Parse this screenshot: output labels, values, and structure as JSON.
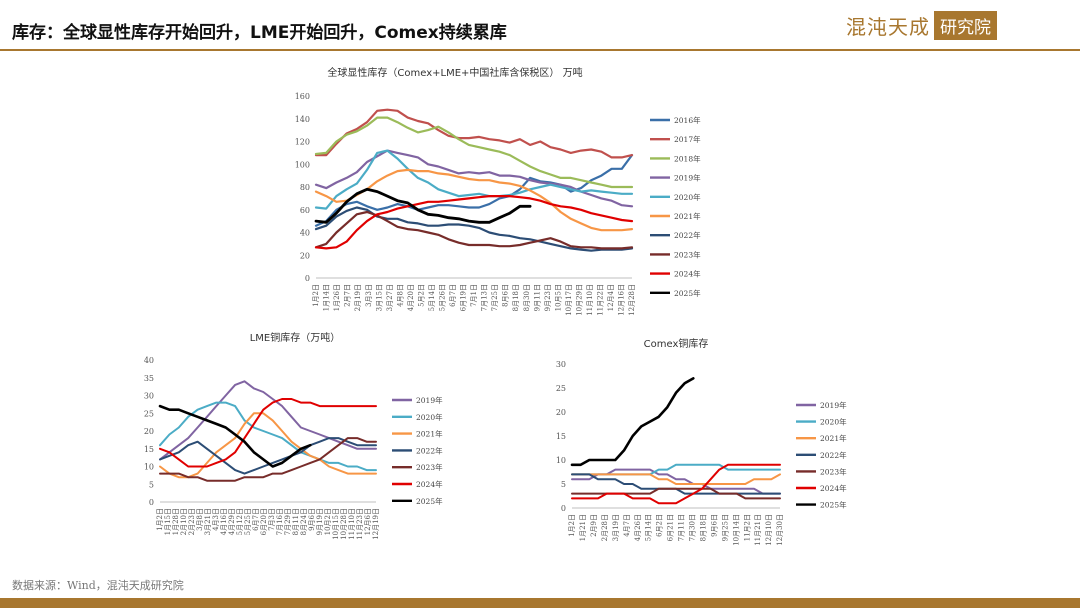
{
  "header": {
    "title": "库存：全球显性库存开始回升，LME开始回升，Comex持续累库",
    "logo_text": "混沌天成",
    "logo_box": "研究院",
    "brand_color": "#a8772f"
  },
  "footer": {
    "source": "数据来源：Wind，混沌天成研究院"
  },
  "series_colors": {
    "2016年": "#3a6fa8",
    "2017年": "#c0504d",
    "2018年": "#9bbb59",
    "2019年": "#8064a2",
    "2020年": "#4bacc6",
    "2021年": "#f79646",
    "2022年": "#2c4d75",
    "2023年": "#772c2a",
    "2024年": "#e00000",
    "2025年": "#000000"
  },
  "chart_data": [
    {
      "id": "global",
      "type": "line",
      "title": "全球显性库存（Comex+LME+中国社库含保税区） 万吨",
      "ylim": [
        0,
        160
      ],
      "yticks": [
        0,
        20,
        40,
        60,
        80,
        100,
        120,
        140,
        160
      ],
      "grid": false,
      "legend_position": "right",
      "x_labels": [
        "1月2日",
        "1月14日",
        "1月26日",
        "2月7日",
        "2月19日",
        "3月3日",
        "3月15日",
        "3月27日",
        "4月8日",
        "4月20日",
        "5月2日",
        "5月14日",
        "5月26日",
        "6月7日",
        "6月19日",
        "7月1日",
        "7月13日",
        "7月25日",
        "8月6日",
        "8月18日",
        "8月30日",
        "9月11日",
        "9月23日",
        "10月5日",
        "10月17日",
        "10月29日",
        "11月10日",
        "11月22日",
        "12月4日",
        "12月16日",
        "12月28日"
      ],
      "series": [
        {
          "name": "2016年",
          "values": [
            46,
            50,
            60,
            65,
            67,
            63,
            60,
            62,
            65,
            63,
            60,
            62,
            64,
            64,
            63,
            62,
            62,
            65,
            70,
            72,
            78,
            88,
            85,
            84,
            82,
            76,
            79,
            86,
            90,
            96,
            96,
            108
          ]
        },
        {
          "name": "2017年",
          "values": [
            108,
            108,
            118,
            127,
            131,
            137,
            147,
            148,
            147,
            141,
            138,
            136,
            130,
            125,
            123,
            123,
            124,
            122,
            121,
            119,
            122,
            117,
            120,
            115,
            113,
            110,
            112,
            113,
            111,
            106,
            106,
            108
          ]
        },
        {
          "name": "2018年",
          "values": [
            109,
            110,
            120,
            126,
            129,
            134,
            141,
            141,
            137,
            132,
            128,
            130,
            133,
            128,
            122,
            117,
            115,
            113,
            111,
            108,
            103,
            98,
            94,
            91,
            88,
            88,
            86,
            84,
            82,
            80,
            80,
            80
          ]
        },
        {
          "name": "2019年",
          "values": [
            82,
            79,
            84,
            88,
            93,
            102,
            107,
            112,
            110,
            108,
            106,
            100,
            98,
            95,
            92,
            93,
            92,
            93,
            90,
            90,
            89,
            86,
            84,
            83,
            82,
            80,
            76,
            73,
            70,
            68,
            64,
            63
          ]
        },
        {
          "name": "2020年",
          "values": [
            62,
            61,
            72,
            78,
            83,
            95,
            110,
            112,
            105,
            96,
            88,
            84,
            78,
            75,
            72,
            73,
            74,
            72,
            72,
            73,
            75,
            78,
            80,
            82,
            80,
            78,
            76,
            77,
            76,
            75,
            74,
            74
          ]
        },
        {
          "name": "2021年",
          "values": [
            76,
            72,
            67,
            68,
            73,
            78,
            85,
            90,
            94,
            95,
            94,
            94,
            92,
            91,
            89,
            87,
            86,
            86,
            84,
            83,
            81,
            77,
            72,
            66,
            58,
            52,
            48,
            44,
            42,
            42,
            42,
            43
          ]
        },
        {
          "name": "2022年",
          "values": [
            43,
            46,
            54,
            59,
            62,
            60,
            54,
            52,
            52,
            49,
            48,
            46,
            46,
            47,
            47,
            46,
            44,
            40,
            38,
            37,
            35,
            34,
            32,
            30,
            28,
            26,
            25,
            24,
            25,
            25,
            25,
            26
          ]
        },
        {
          "name": "2023年",
          "values": [
            27,
            30,
            40,
            48,
            56,
            58,
            55,
            50,
            45,
            43,
            42,
            40,
            38,
            34,
            31,
            29,
            29,
            29,
            28,
            28,
            29,
            31,
            33,
            35,
            32,
            28,
            27,
            27,
            26,
            26,
            26,
            27
          ]
        },
        {
          "name": "2024年",
          "values": [
            27,
            26,
            27,
            32,
            42,
            50,
            56,
            58,
            61,
            63,
            65,
            67,
            67,
            68,
            69,
            70,
            71,
            72,
            72,
            72,
            71,
            70,
            68,
            65,
            63,
            62,
            60,
            57,
            55,
            53,
            51,
            50
          ]
        },
        {
          "name": "2025年",
          "values": [
            50,
            49,
            57,
            67,
            74,
            78,
            76,
            72,
            68,
            66,
            60,
            56,
            55,
            53,
            52,
            50,
            49,
            49,
            53,
            57,
            63,
            63
          ]
        }
      ]
    },
    {
      "id": "lme",
      "type": "line",
      "title": "LME铜库存（万吨）",
      "ylim": [
        0,
        40
      ],
      "yticks": [
        0,
        5,
        10,
        15,
        20,
        25,
        30,
        35,
        40
      ],
      "grid": false,
      "legend_position": "right",
      "x_labels": [
        "1月2日",
        "1月15日",
        "1月28日",
        "2月10日",
        "2月23日",
        "3月8日",
        "3月21日",
        "4月3日",
        "4月16日",
        "4月29日",
        "5月12日",
        "5月25日",
        "6月7日",
        "6月20日",
        "7月3日",
        "7月16日",
        "7月29日",
        "8月11日",
        "8月24日",
        "9月6日",
        "9月19日",
        "10月2日",
        "10月15日",
        "10月28日",
        "11月10日",
        "11月23日",
        "12月6日",
        "12月19日"
      ],
      "series": [
        {
          "name": "2019年",
          "values": [
            12,
            14,
            16,
            18,
            21,
            24,
            27,
            30,
            33,
            34,
            32,
            31,
            29,
            27,
            24,
            21,
            20,
            19,
            18,
            17,
            16,
            15,
            15,
            15
          ]
        },
        {
          "name": "2020年",
          "values": [
            16,
            19,
            21,
            24,
            26,
            27,
            28,
            28,
            27,
            23,
            21,
            20,
            19,
            18,
            16,
            14,
            13,
            12,
            11,
            11,
            10,
            10,
            9,
            9
          ]
        },
        {
          "name": "2021年",
          "values": [
            10,
            8,
            7,
            7,
            8,
            11,
            14,
            16,
            18,
            22,
            25,
            25,
            23,
            20,
            17,
            15,
            13,
            12,
            10,
            9,
            8,
            8,
            8,
            8
          ]
        },
        {
          "name": "2022年",
          "values": [
            12,
            13,
            14,
            16,
            17,
            15,
            13,
            11,
            9,
            8,
            9,
            10,
            11,
            12,
            13,
            14,
            16,
            17,
            18,
            18,
            17,
            16,
            16,
            16
          ]
        },
        {
          "name": "2023年",
          "values": [
            8,
            8,
            8,
            7,
            7,
            6,
            6,
            6,
            6,
            7,
            7,
            7,
            8,
            8,
            9,
            10,
            11,
            12,
            14,
            16,
            18,
            18,
            17,
            17
          ]
        },
        {
          "name": "2024年",
          "values": [
            15,
            14,
            12,
            10,
            10,
            10,
            11,
            12,
            14,
            18,
            22,
            26,
            28,
            29,
            29,
            28,
            28,
            27,
            27,
            27,
            27,
            27,
            27,
            27
          ]
        },
        {
          "name": "2025年",
          "values": [
            27,
            26,
            26,
            25,
            24,
            23,
            22,
            21,
            19,
            17,
            14,
            12,
            10,
            11,
            13,
            15,
            16
          ]
        }
      ]
    },
    {
      "id": "comex",
      "type": "line",
      "title": "Comex铜库存",
      "ylim": [
        0,
        30
      ],
      "yticks": [
        0,
        5,
        10,
        15,
        20,
        25,
        30
      ],
      "grid": false,
      "legend_position": "right",
      "x_labels": [
        "1月2日",
        "1月21日",
        "2月9日",
        "2月28日",
        "3月19日",
        "4月7日",
        "4月26日",
        "5月14日",
        "6月2日",
        "6月21日",
        "7月11日",
        "7月30日",
        "8月18日",
        "9月6日",
        "9月25日",
        "10月14日",
        "11月2日",
        "11月21日",
        "12月10日",
        "12月30日"
      ],
      "series": [
        {
          "name": "2019年",
          "values": [
            6,
            6,
            6,
            7,
            7,
            8,
            8,
            8,
            8,
            8,
            7,
            7,
            6,
            6,
            5,
            5,
            4,
            4,
            4,
            4,
            4,
            4,
            3,
            3,
            3
          ]
        },
        {
          "name": "2020年",
          "values": [
            7,
            7,
            7,
            7,
            7,
            7,
            7,
            7,
            7,
            7,
            8,
            8,
            9,
            9,
            9,
            9,
            9,
            9,
            8,
            8,
            8,
            8,
            8,
            8,
            8
          ]
        },
        {
          "name": "2021年",
          "values": [
            7,
            7,
            7,
            7,
            7,
            7,
            7,
            7,
            7,
            7,
            6,
            6,
            5,
            5,
            5,
            5,
            5,
            5,
            5,
            5,
            5,
            6,
            6,
            6,
            7
          ]
        },
        {
          "name": "2022年",
          "values": [
            7,
            7,
            7,
            6,
            6,
            6,
            5,
            5,
            4,
            4,
            4,
            4,
            4,
            3,
            3,
            3,
            3,
            3,
            3,
            3,
            3,
            3,
            3,
            3,
            3
          ]
        },
        {
          "name": "2023年",
          "values": [
            3,
            3,
            3,
            3,
            3,
            3,
            3,
            3,
            3,
            3,
            4,
            4,
            4,
            4,
            4,
            4,
            4,
            3,
            3,
            3,
            2,
            2,
            2,
            2,
            2
          ]
        },
        {
          "name": "2024年",
          "values": [
            2,
            2,
            2,
            2,
            3,
            3,
            3,
            2,
            2,
            2,
            1,
            1,
            1,
            2,
            3,
            4,
            6,
            8,
            9,
            9,
            9,
            9,
            9,
            9,
            9
          ]
        },
        {
          "name": "2025年",
          "values": [
            9,
            9,
            10,
            10,
            10,
            10,
            12,
            15,
            17,
            18,
            19,
            21,
            24,
            26,
            27
          ]
        }
      ]
    }
  ]
}
